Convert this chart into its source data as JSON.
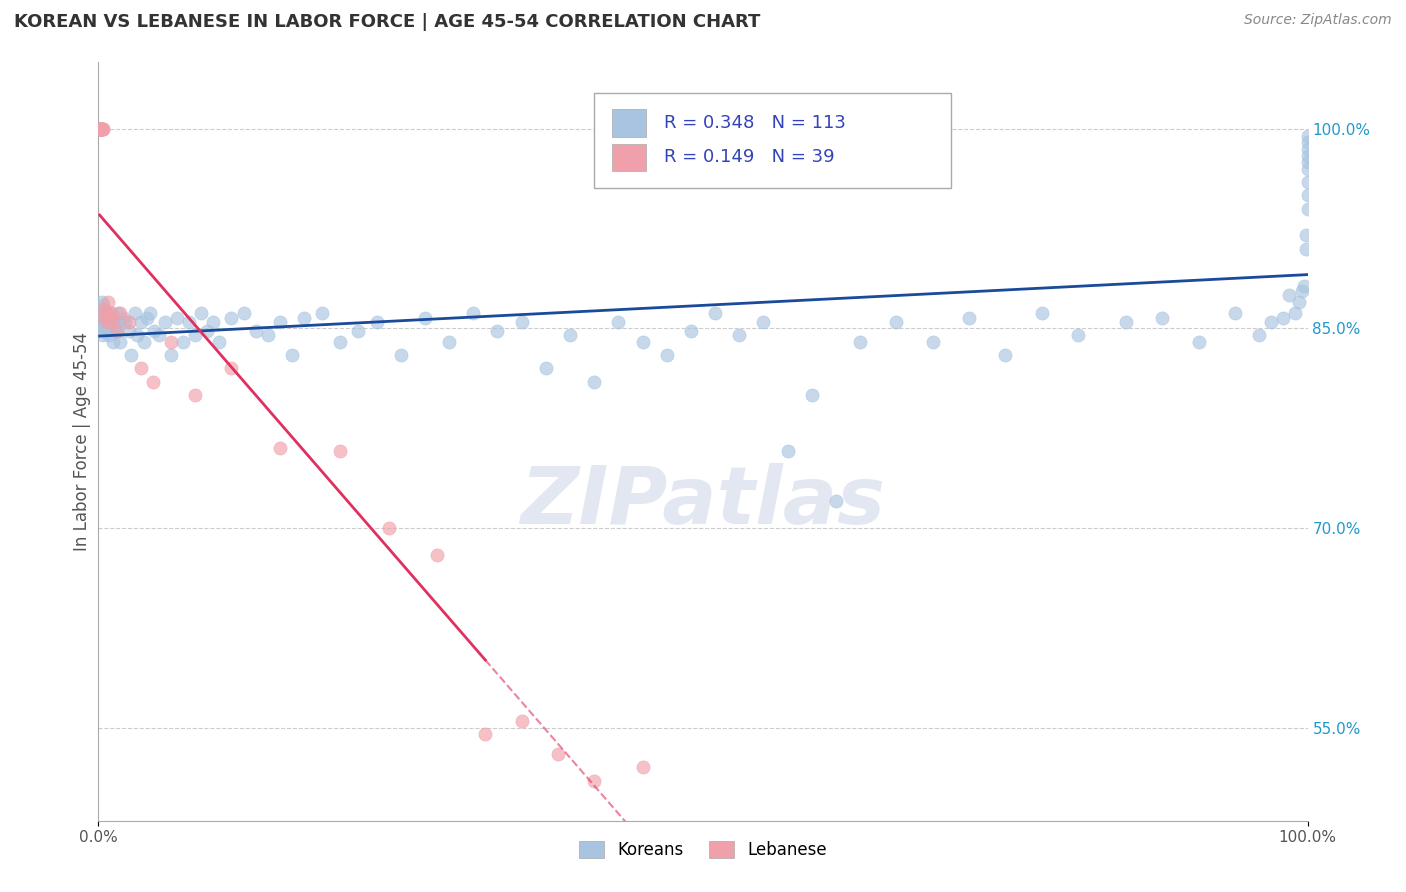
{
  "title": "KOREAN VS LEBANESE IN LABOR FORCE | AGE 45-54 CORRELATION CHART",
  "source": "Source: ZipAtlas.com",
  "ylabel": "In Labor Force | Age 45-54",
  "xlim": [
    0.0,
    1.0
  ],
  "ylim": [
    0.48,
    1.05
  ],
  "yticks": [
    0.55,
    0.7,
    0.85,
    1.0
  ],
  "ytick_labels": [
    "55.0%",
    "70.0%",
    "85.0%",
    "100.0%"
  ],
  "korean_R": 0.348,
  "korean_N": 113,
  "lebanese_R": 0.149,
  "lebanese_N": 39,
  "korean_color": "#a8c4e0",
  "lebanese_color": "#f0a0aa",
  "korean_line_color": "#1a4a9a",
  "lebanese_line_color": "#e03060",
  "watermark": "ZIPatlas",
  "background_color": "#ffffff",
  "grid_color": "#cccccc",
  "title_fontsize": 13,
  "axis_label_fontsize": 12,
  "tick_fontsize": 11,
  "korean_x": [
    0.001,
    0.001,
    0.002,
    0.002,
    0.002,
    0.003,
    0.003,
    0.003,
    0.004,
    0.004,
    0.004,
    0.005,
    0.005,
    0.005,
    0.006,
    0.006,
    0.007,
    0.007,
    0.008,
    0.008,
    0.009,
    0.01,
    0.01,
    0.011,
    0.012,
    0.013,
    0.014,
    0.015,
    0.016,
    0.017,
    0.018,
    0.02,
    0.022,
    0.025,
    0.027,
    0.03,
    0.032,
    0.035,
    0.038,
    0.04,
    0.043,
    0.046,
    0.05,
    0.055,
    0.06,
    0.065,
    0.07,
    0.075,
    0.08,
    0.085,
    0.09,
    0.095,
    0.1,
    0.11,
    0.12,
    0.13,
    0.14,
    0.15,
    0.16,
    0.17,
    0.185,
    0.2,
    0.215,
    0.23,
    0.25,
    0.27,
    0.29,
    0.31,
    0.33,
    0.35,
    0.37,
    0.39,
    0.41,
    0.43,
    0.45,
    0.47,
    0.49,
    0.51,
    0.53,
    0.55,
    0.57,
    0.59,
    0.61,
    0.63,
    0.66,
    0.69,
    0.72,
    0.75,
    0.78,
    0.81,
    0.85,
    0.88,
    0.91,
    0.94,
    0.96,
    0.97,
    0.98,
    0.985,
    0.99,
    0.993,
    0.995,
    0.997,
    0.999,
    0.999,
    1.0,
    1.0,
    1.0,
    1.0,
    1.0,
    1.0,
    1.0,
    1.0,
    1.0
  ],
  "korean_y": [
    0.855,
    0.862,
    0.858,
    0.865,
    0.85,
    0.86,
    0.87,
    0.855,
    0.852,
    0.868,
    0.845,
    0.858,
    0.862,
    0.855,
    0.848,
    0.86,
    0.855,
    0.862,
    0.85,
    0.858,
    0.845,
    0.862,
    0.855,
    0.858,
    0.84,
    0.855,
    0.85,
    0.848,
    0.862,
    0.855,
    0.84,
    0.858,
    0.855,
    0.848,
    0.83,
    0.862,
    0.845,
    0.855,
    0.84,
    0.858,
    0.862,
    0.848,
    0.845,
    0.855,
    0.83,
    0.858,
    0.84,
    0.855,
    0.845,
    0.862,
    0.848,
    0.855,
    0.84,
    0.858,
    0.862,
    0.848,
    0.845,
    0.855,
    0.83,
    0.858,
    0.862,
    0.84,
    0.848,
    0.855,
    0.83,
    0.858,
    0.84,
    0.862,
    0.848,
    0.855,
    0.82,
    0.845,
    0.81,
    0.855,
    0.84,
    0.83,
    0.848,
    0.862,
    0.845,
    0.855,
    0.758,
    0.8,
    0.72,
    0.84,
    0.855,
    0.84,
    0.858,
    0.83,
    0.862,
    0.845,
    0.855,
    0.858,
    0.84,
    0.862,
    0.845,
    0.855,
    0.858,
    0.875,
    0.862,
    0.87,
    0.878,
    0.882,
    0.91,
    0.92,
    0.94,
    0.95,
    0.96,
    0.97,
    0.975,
    0.98,
    0.985,
    0.99,
    0.995
  ],
  "lebanese_x": [
    0.001,
    0.001,
    0.001,
    0.001,
    0.001,
    0.002,
    0.002,
    0.002,
    0.002,
    0.003,
    0.003,
    0.003,
    0.004,
    0.004,
    0.005,
    0.005,
    0.006,
    0.007,
    0.008,
    0.009,
    0.01,
    0.012,
    0.015,
    0.018,
    0.025,
    0.035,
    0.045,
    0.06,
    0.08,
    0.11,
    0.15,
    0.2,
    0.24,
    0.28,
    0.32,
    0.35,
    0.38,
    0.41,
    0.45
  ],
  "lebanese_y": [
    1.0,
    1.0,
    1.0,
    1.0,
    1.0,
    1.0,
    1.0,
    1.0,
    1.0,
    1.0,
    1.0,
    1.0,
    1.0,
    1.0,
    0.865,
    0.858,
    0.862,
    0.855,
    0.87,
    0.858,
    0.862,
    0.855,
    0.848,
    0.862,
    0.855,
    0.82,
    0.81,
    0.84,
    0.8,
    0.82,
    0.76,
    0.758,
    0.7,
    0.68,
    0.545,
    0.555,
    0.53,
    0.51,
    0.52
  ]
}
